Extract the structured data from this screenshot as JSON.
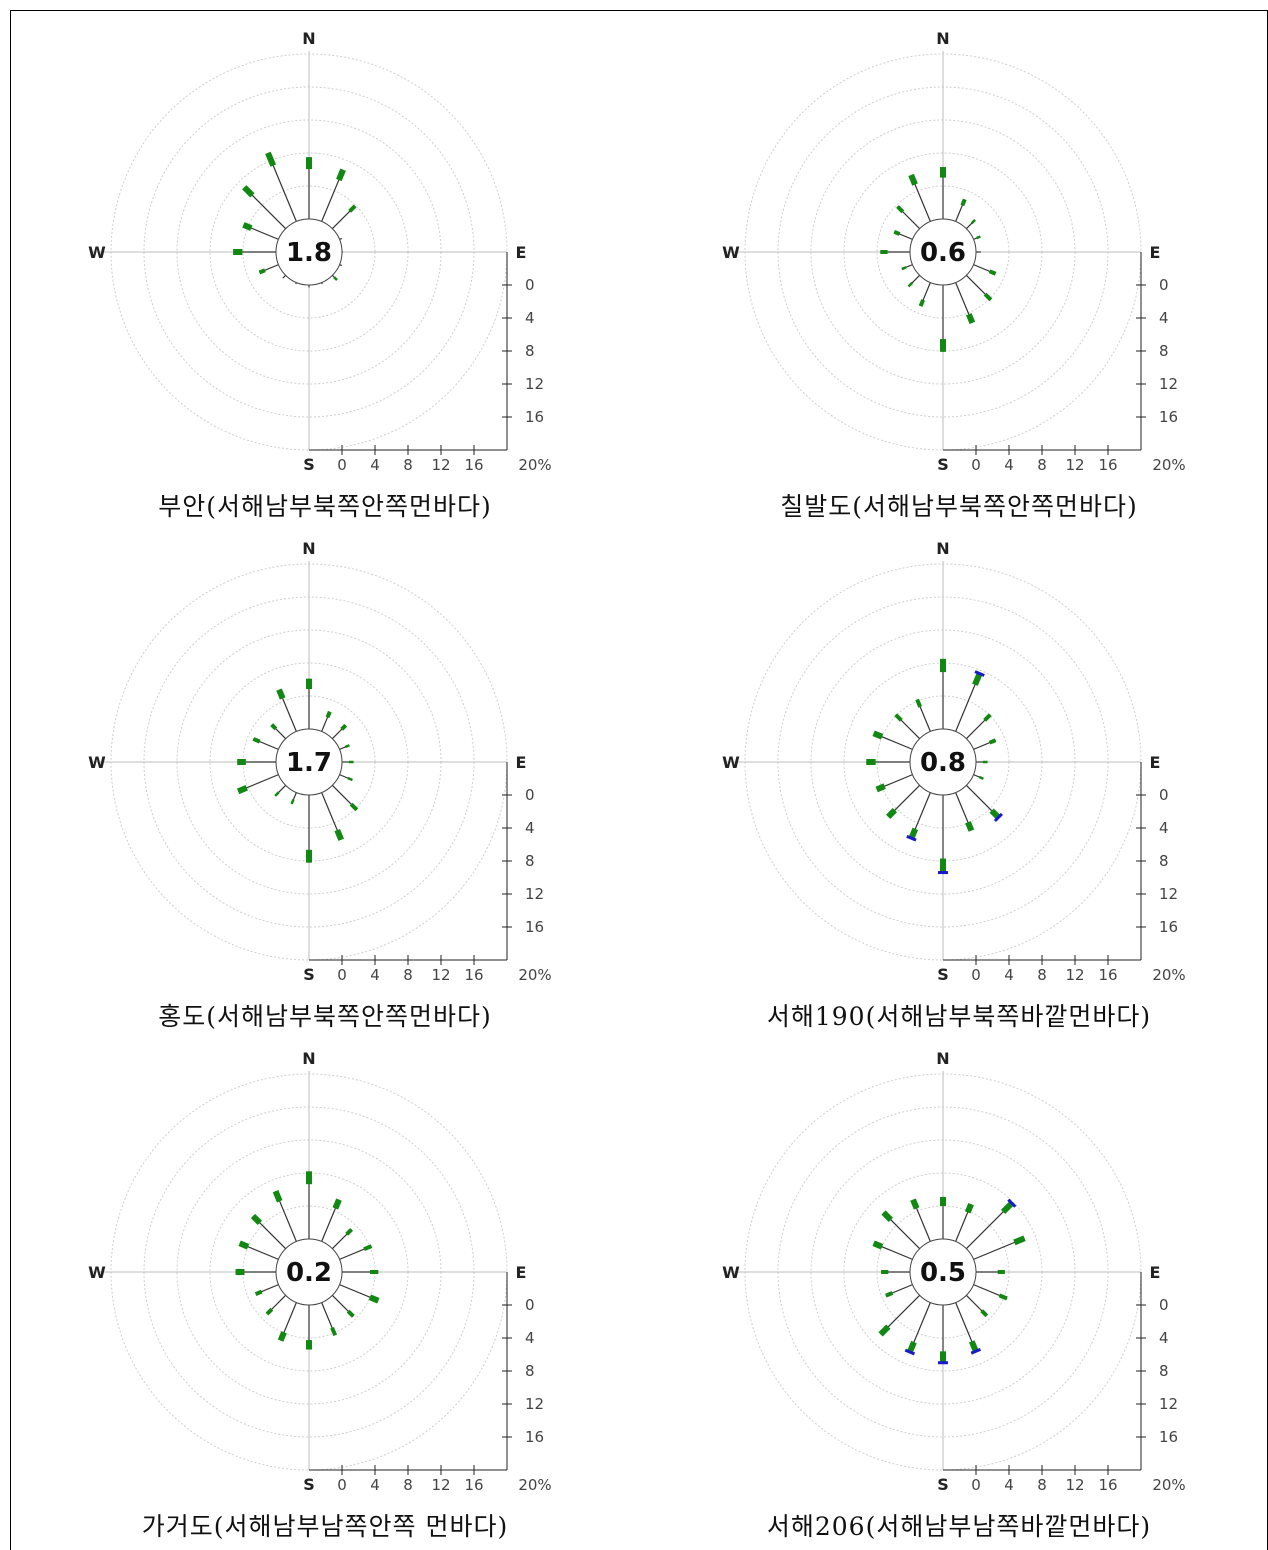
{
  "cardinals": {
    "n": "N",
    "s": "S",
    "e": "E",
    "w": "W"
  },
  "scale_ticks": [
    "0",
    "4",
    "8",
    "12",
    "16"
  ],
  "scale_end": "20%",
  "colors": {
    "petal": "#118811",
    "outer_cap": "#1a1acc",
    "line": "#333333",
    "grid": "#cfcfcf"
  },
  "chart_data": [
    {
      "type": "rose",
      "caption": "부안(서해남부북쪽안쪽먼바다)",
      "calm": "1.8",
      "petals": [
        {
          "dir": 0,
          "value": 7.5
        },
        {
          "dir": 22.5,
          "value": 6.8
        },
        {
          "dir": 45,
          "value": 3.9
        },
        {
          "dir": 67.5,
          "value": 0.3
        },
        {
          "dir": 90,
          "value": 0.1
        },
        {
          "dir": 112.5,
          "value": 0.3
        },
        {
          "dir": 135,
          "value": 0.8
        },
        {
          "dir": 157.5,
          "value": 0.2
        },
        {
          "dir": 180,
          "value": 0.3
        },
        {
          "dir": 202.5,
          "value": 0.2
        },
        {
          "dir": 225,
          "value": 0.5
        },
        {
          "dir": 247.5,
          "value": 2.5
        },
        {
          "dir": 270,
          "value": 5.2
        },
        {
          "dir": 292.5,
          "value": 4.6
        },
        {
          "dir": 315,
          "value": 7.1
        },
        {
          "dir": 337.5,
          "value": 9.0
        }
      ]
    },
    {
      "type": "rose",
      "caption": "칠발도(서해남부북쪽안쪽먼바다)",
      "calm": "0.6",
      "petals": [
        {
          "dir": 0,
          "value": 6.3
        },
        {
          "dir": 22.5,
          "value": 2.9
        },
        {
          "dir": 45,
          "value": 1.5
        },
        {
          "dir": 67.5,
          "value": 0.9
        },
        {
          "dir": 90,
          "value": 0.6
        },
        {
          "dir": 112.5,
          "value": 2.9
        },
        {
          "dir": 135,
          "value": 4.2
        },
        {
          "dir": 157.5,
          "value": 5.3
        },
        {
          "dir": 180,
          "value": 8.1
        },
        {
          "dir": 202.5,
          "value": 3.1
        },
        {
          "dir": 225,
          "value": 1.9
        },
        {
          "dir": 247.5,
          "value": 1.4
        },
        {
          "dir": 270,
          "value": 3.6
        },
        {
          "dir": 292.5,
          "value": 2.4
        },
        {
          "dir": 315,
          "value": 3.8
        },
        {
          "dir": 337.5,
          "value": 6.1
        }
      ]
    },
    {
      "type": "rose",
      "caption": "홍도(서해남부북쪽안쪽먼바다)",
      "calm": "1.7",
      "petals": [
        {
          "dir": 0,
          "value": 6.1
        },
        {
          "dir": 22.5,
          "value": 2.6
        },
        {
          "dir": 45,
          "value": 2.3
        },
        {
          "dir": 67.5,
          "value": 1.3
        },
        {
          "dir": 90,
          "value": 1.4
        },
        {
          "dir": 112.5,
          "value": 1.7
        },
        {
          "dir": 135,
          "value": 4.2
        },
        {
          "dir": 157.5,
          "value": 6.2
        },
        {
          "dir": 180,
          "value": 8.2
        },
        {
          "dir": 202.5,
          "value": 1.5
        },
        {
          "dir": 225,
          "value": 1.8
        },
        {
          "dir": 247.5,
          "value": 5.3
        },
        {
          "dir": 270,
          "value": 4.7
        },
        {
          "dir": 292.5,
          "value": 3.3
        },
        {
          "dir": 315,
          "value": 2.4
        },
        {
          "dir": 337.5,
          "value": 5.5
        }
      ]
    },
    {
      "type": "rose",
      "caption": "서해190(서해남부북쪽바깥먼바다)",
      "calm": "0.8",
      "petals": [
        {
          "dir": 0,
          "value": 8.5
        },
        {
          "dir": 22.5,
          "value": 7.6
        },
        {
          "dir": 45,
          "value": 4.1
        },
        {
          "dir": 67.5,
          "value": 2.9
        },
        {
          "dir": 90,
          "value": 1.4
        },
        {
          "dir": 112.5,
          "value": 1.3
        },
        {
          "dir": 135,
          "value": 5.5
        },
        {
          "dir": 157.5,
          "value": 5.0
        },
        {
          "dir": 180,
          "value": 9.4
        },
        {
          "dir": 202.5,
          "value": 6.0
        },
        {
          "dir": 225,
          "value": 5.4
        },
        {
          "dir": 247.5,
          "value": 4.7
        },
        {
          "dir": 270,
          "value": 5.3
        },
        {
          "dir": 292.5,
          "value": 5.1
        },
        {
          "dir": 315,
          "value": 4.1
        },
        {
          "dir": 337.5,
          "value": 4.2
        }
      ]
    },
    {
      "type": "rose",
      "caption": "가거도(서해남부남쪽안쪽 먼바다)",
      "calm": "0.2",
      "petals": [
        {
          "dir": 0,
          "value": 8.2
        },
        {
          "dir": 22.5,
          "value": 5.5
        },
        {
          "dir": 45,
          "value": 3.3
        },
        {
          "dir": 67.5,
          "value": 4.2
        },
        {
          "dir": 90,
          "value": 4.4
        },
        {
          "dir": 112.5,
          "value": 5.1
        },
        {
          "dir": 135,
          "value": 3.6
        },
        {
          "dir": 157.5,
          "value": 4.3
        },
        {
          "dir": 180,
          "value": 5.4
        },
        {
          "dir": 202.5,
          "value": 5.0
        },
        {
          "dir": 225,
          "value": 3.2
        },
        {
          "dir": 247.5,
          "value": 3.0
        },
        {
          "dir": 270,
          "value": 4.9
        },
        {
          "dir": 292.5,
          "value": 5.1
        },
        {
          "dir": 315,
          "value": 5.6
        },
        {
          "dir": 337.5,
          "value": 6.6
        }
      ]
    },
    {
      "type": "rose",
      "caption": "서해206(서해남부남쪽바깥먼바다)",
      "calm": "0.5",
      "petals": [
        {
          "dir": 0,
          "value": 5.1
        },
        {
          "dir": 22.5,
          "value": 4.9
        },
        {
          "dir": 45,
          "value": 7.8
        },
        {
          "dir": 67.5,
          "value": 6.7
        },
        {
          "dir": 90,
          "value": 3.5
        },
        {
          "dir": 112.5,
          "value": 4.4
        },
        {
          "dir": 135,
          "value": 3.5
        },
        {
          "dir": 157.5,
          "value": 6.4
        },
        {
          "dir": 180,
          "value": 7.0
        },
        {
          "dir": 202.5,
          "value": 6.5
        },
        {
          "dir": 225,
          "value": 6.7
        },
        {
          "dir": 247.5,
          "value": 3.5
        },
        {
          "dir": 270,
          "value": 3.5
        },
        {
          "dir": 292.5,
          "value": 5.1
        },
        {
          "dir": 315,
          "value": 6.2
        },
        {
          "dir": 337.5,
          "value": 5.5
        }
      ]
    }
  ]
}
